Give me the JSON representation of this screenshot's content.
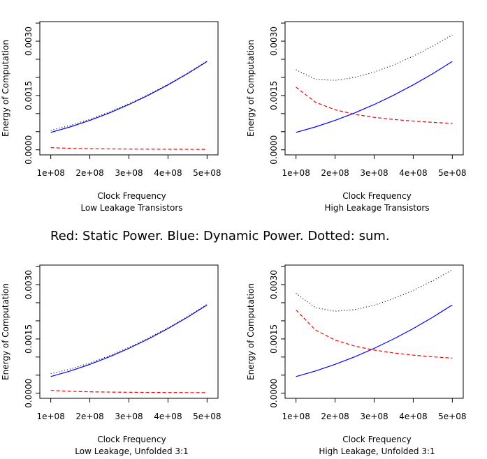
{
  "caption": "Red: Static Power. Blue: Dynamic Power. Dotted: sum.",
  "chart_data": [
    {
      "type": "line",
      "xlabel": "Clock Frequency",
      "subtitle": "Low Leakage Transistors",
      "ylabel": "Energy of Computation",
      "x": [
        100000000,
        150000000,
        200000000,
        250000000,
        300000000,
        350000000,
        400000000,
        450000000,
        500000000
      ],
      "xlim": [
        72000000,
        528000000
      ],
      "xticks": [
        {
          "value": 100000000,
          "label": "1e+08"
        },
        {
          "value": 200000000,
          "label": "2e+08"
        },
        {
          "value": 300000000,
          "label": "3e+08"
        },
        {
          "value": 400000000,
          "label": "4e+08"
        },
        {
          "value": 500000000,
          "label": "5e+08"
        }
      ],
      "ylim": [
        -0.00014,
        0.00354
      ],
      "yticks": [
        {
          "value": 0,
          "label": "0.0000"
        },
        {
          "value": 0.0005,
          "label": null
        },
        {
          "value": 0.001,
          "label": null
        },
        {
          "value": 0.0015,
          "label": "0.0015"
        },
        {
          "value": 0.002,
          "label": null
        },
        {
          "value": 0.0025,
          "label": null
        },
        {
          "value": 0.003,
          "label": "0.0030"
        },
        {
          "value": 0.0035,
          "label": null
        }
      ],
      "series": [
        {
          "color": "#ff0000",
          "linestyle": "dashed",
          "values": [
            6e-05,
            4e-05,
            3e-05,
            2.4e-05,
            2e-05,
            1.7e-05,
            1.5e-05,
            1.3e-05,
            1.2e-05
          ]
        },
        {
          "color": "#0000ff",
          "linestyle": "solid",
          "values": [
            0.00048,
            0.000633,
            0.000813,
            0.001018,
            0.00125,
            0.001508,
            0.001793,
            0.002103,
            0.00244
          ]
        },
        {
          "color": "#000000",
          "linestyle": "dotted",
          "values": [
            0.00054,
            0.000673,
            0.000843,
            0.001042,
            0.00127,
            0.001525,
            0.001808,
            0.002116,
            0.002452
          ]
        }
      ]
    },
    {
      "type": "line",
      "xlabel": "Clock Frequency",
      "subtitle": "High Leakage Transistors",
      "ylabel": "Energy of Computation",
      "x": [
        100000000,
        150000000,
        200000000,
        250000000,
        300000000,
        350000000,
        400000000,
        450000000,
        500000000
      ],
      "xlim": [
        72000000,
        528000000
      ],
      "xticks": [
        {
          "value": 100000000,
          "label": "1e+08"
        },
        {
          "value": 200000000,
          "label": "2e+08"
        },
        {
          "value": 300000000,
          "label": "3e+08"
        },
        {
          "value": 400000000,
          "label": "4e+08"
        },
        {
          "value": 500000000,
          "label": "5e+08"
        }
      ],
      "ylim": [
        -0.00014,
        0.00354
      ],
      "yticks": [
        {
          "value": 0,
          "label": "0.0000"
        },
        {
          "value": 0.0005,
          "label": null
        },
        {
          "value": 0.001,
          "label": null
        },
        {
          "value": 0.0015,
          "label": "0.0015"
        },
        {
          "value": 0.002,
          "label": null
        },
        {
          "value": 0.0025,
          "label": null
        },
        {
          "value": 0.003,
          "label": "0.0030"
        },
        {
          "value": 0.0035,
          "label": null
        }
      ],
      "series": [
        {
          "color": "#ff0000",
          "linestyle": "dashed",
          "values": [
            0.00173,
            0.001313,
            0.001105,
            0.00098,
            0.000897,
            0.000837,
            0.000793,
            0.000758,
            0.00073
          ]
        },
        {
          "color": "#0000ff",
          "linestyle": "solid",
          "values": [
            0.00048,
            0.000633,
            0.000813,
            0.001018,
            0.00125,
            0.001508,
            0.001793,
            0.002103,
            0.00244
          ]
        },
        {
          "color": "#000000",
          "linestyle": "dotted",
          "values": [
            0.00221,
            0.001946,
            0.001918,
            0.001998,
            0.002147,
            0.002345,
            0.002586,
            0.002861,
            0.00317
          ]
        }
      ]
    },
    {
      "type": "line",
      "xlabel": "Clock Frequency",
      "subtitle": "Low Leakage, Unfolded 3:1",
      "ylabel": "Energy of Computation",
      "x": [
        100000000,
        150000000,
        200000000,
        250000000,
        300000000,
        350000000,
        400000000,
        450000000,
        500000000
      ],
      "xlim": [
        72000000,
        528000000
      ],
      "xticks": [
        {
          "value": 100000000,
          "label": "1e+08"
        },
        {
          "value": 200000000,
          "label": "2e+08"
        },
        {
          "value": 300000000,
          "label": "3e+08"
        },
        {
          "value": 400000000,
          "label": "4e+08"
        },
        {
          "value": 500000000,
          "label": "5e+08"
        }
      ],
      "ylim": [
        -0.00014,
        0.00354
      ],
      "yticks": [
        {
          "value": 0,
          "label": "0.0000"
        },
        {
          "value": 0.0005,
          "label": null
        },
        {
          "value": 0.001,
          "label": null
        },
        {
          "value": 0.0015,
          "label": "0.0015"
        },
        {
          "value": 0.002,
          "label": null
        },
        {
          "value": 0.0025,
          "label": null
        },
        {
          "value": 0.003,
          "label": "0.0030"
        },
        {
          "value": 0.0035,
          "label": null
        }
      ],
      "series": [
        {
          "color": "#ff0000",
          "linestyle": "dashed",
          "values": [
            8e-05,
            5.3e-05,
            4e-05,
            3.2e-05,
            2.7e-05,
            2.3e-05,
            2e-05,
            1.8e-05,
            1.6e-05
          ]
        },
        {
          "color": "#0000ff",
          "linestyle": "solid",
          "values": [
            0.00046,
            0.000615,
            0.000797,
            0.001005,
            0.00124,
            0.0015,
            0.001787,
            0.0021,
            0.00244
          ]
        },
        {
          "color": "#000000",
          "linestyle": "dotted",
          "values": [
            0.00054,
            0.000668,
            0.000837,
            0.001037,
            0.001267,
            0.001523,
            0.001807,
            0.002118,
            0.002456
          ]
        }
      ]
    },
    {
      "type": "line",
      "xlabel": "Clock Frequency",
      "subtitle": "High Leakage, Unfolded 3:1",
      "ylabel": "Energy of Computation",
      "x": [
        100000000,
        150000000,
        200000000,
        250000000,
        300000000,
        350000000,
        400000000,
        450000000,
        500000000
      ],
      "xlim": [
        72000000,
        528000000
      ],
      "xticks": [
        {
          "value": 100000000,
          "label": "1e+08"
        },
        {
          "value": 200000000,
          "label": "2e+08"
        },
        {
          "value": 300000000,
          "label": "3e+08"
        },
        {
          "value": 400000000,
          "label": "4e+08"
        },
        {
          "value": 500000000,
          "label": "5e+08"
        }
      ],
      "ylim": [
        -0.00014,
        0.00354
      ],
      "yticks": [
        {
          "value": 0,
          "label": "0.0000"
        },
        {
          "value": 0.0005,
          "label": null
        },
        {
          "value": 0.001,
          "label": null
        },
        {
          "value": 0.0015,
          "label": "0.0015"
        },
        {
          "value": 0.002,
          "label": null
        },
        {
          "value": 0.0025,
          "label": null
        },
        {
          "value": 0.003,
          "label": "0.0030"
        },
        {
          "value": 0.0035,
          "label": null
        }
      ],
      "series": [
        {
          "color": "#ff0000",
          "linestyle": "dashed",
          "values": [
            0.0023,
            0.001746,
            0.001469,
            0.001303,
            0.001192,
            0.001113,
            0.001053,
            0.001007,
            0.00097
          ]
        },
        {
          "color": "#0000ff",
          "linestyle": "solid",
          "values": [
            0.00046,
            0.000615,
            0.000797,
            0.001005,
            0.00124,
            0.0015,
            0.001787,
            0.0021,
            0.00244
          ]
        },
        {
          "color": "#000000",
          "linestyle": "dotted",
          "values": [
            0.00276,
            0.002361,
            0.002266,
            0.002308,
            0.002432,
            0.002613,
            0.00284,
            0.003107,
            0.00341
          ]
        }
      ]
    }
  ]
}
